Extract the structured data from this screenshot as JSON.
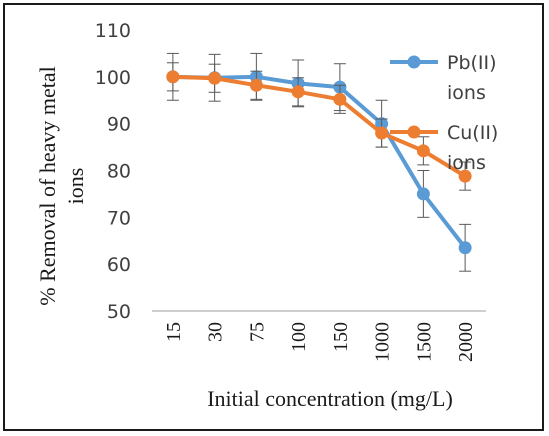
{
  "chart_data": {
    "type": "line",
    "categories": [
      "15",
      "30",
      "75",
      "100",
      "150",
      "1000",
      "1500",
      "2000"
    ],
    "series": [
      {
        "name": "Pb(II) ions",
        "name_lines": [
          "Pb(II)",
          "ions"
        ],
        "color": "#5b9bd5",
        "values": [
          100,
          99.8,
          100,
          98.6,
          97.8,
          90,
          75,
          63.5
        ],
        "errors": [
          5,
          5,
          5,
          5,
          5,
          5,
          5,
          5
        ]
      },
      {
        "name": "Cu(II) ions",
        "name_lines": [
          "Cu(II)",
          "ions"
        ],
        "color": "#ed7d31",
        "values": [
          100,
          99.7,
          98.2,
          96.8,
          95.2,
          88,
          84.2,
          78.8
        ],
        "errors": [
          3,
          3,
          3,
          3,
          3,
          3,
          3,
          3
        ]
      }
    ],
    "xlabel": "Initial concentration (mg/L)",
    "ylabel": "% Removal of heavy metal ions",
    "ylabel_lines": [
      "% Removal of heavy metal",
      "ions"
    ],
    "ylim": [
      50,
      110
    ],
    "yticks": [
      50,
      60,
      70,
      80,
      90,
      100,
      110
    ],
    "yticks_labels": [
      "50",
      "60",
      "70",
      "80",
      "90",
      "100",
      "110"
    ],
    "grid": false,
    "legend": "right",
    "error_bar_color": "#595959"
  }
}
